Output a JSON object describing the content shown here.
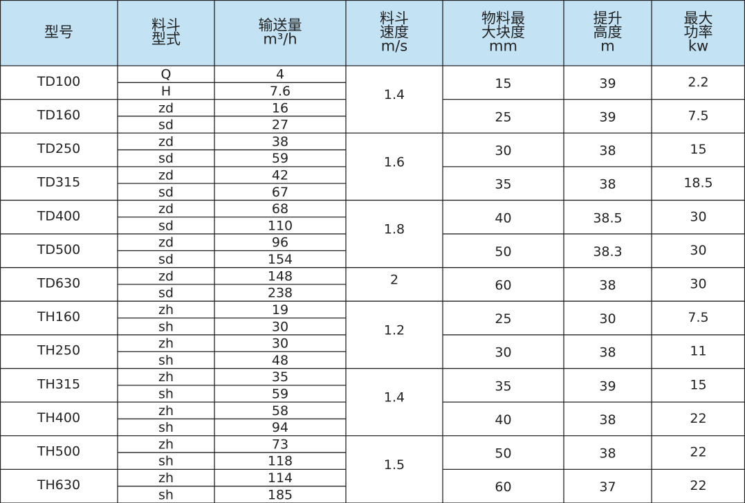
{
  "header": {
    "columns": [
      [
        "型号"
      ],
      [
        "料斗",
        "型式"
      ],
      [
        "输送量",
        "m³/h"
      ],
      [
        "料斗",
        "速度",
        "m/s"
      ],
      [
        "物料最",
        "大块度",
        "mm"
      ],
      [
        "提升",
        "高度",
        "m"
      ],
      [
        "最大",
        "功率",
        "kw"
      ]
    ]
  },
  "rows": [
    {
      "model": "TD100",
      "types": [
        "Q",
        "H"
      ],
      "capacity": [
        4,
        7.6
      ],
      "size": 15,
      "height": 39,
      "power": 2.2
    },
    {
      "model": "TD160",
      "types": [
        "zd",
        "sd"
      ],
      "capacity": [
        16,
        27
      ],
      "size": 25,
      "height": 39,
      "power": 7.5
    },
    {
      "model": "TD250",
      "types": [
        "zd",
        "sd"
      ],
      "capacity": [
        38,
        59
      ],
      "size": 30,
      "height": 38,
      "power": 15
    },
    {
      "model": "TD315",
      "types": [
        "zd",
        "sd"
      ],
      "capacity": [
        42,
        67
      ],
      "size": 35,
      "height": 38,
      "power": 18.5
    },
    {
      "model": "TD400",
      "types": [
        "zd",
        "sd"
      ],
      "capacity": [
        68,
        110
      ],
      "size": 40,
      "height": 38.5,
      "power": 30
    },
    {
      "model": "TD500",
      "types": [
        "zd",
        "sd"
      ],
      "capacity": [
        96,
        154
      ],
      "size": 50,
      "height": 38.3,
      "power": 30
    },
    {
      "model": "TD630",
      "types": [
        "zd",
        "sd"
      ],
      "capacity": [
        148,
        238
      ],
      "size": 60,
      "height": 38,
      "power": 30
    },
    {
      "model": "TH160",
      "types": [
        "zh",
        "sh"
      ],
      "capacity": [
        19,
        30
      ],
      "size": 25,
      "height": 30,
      "power": 7.5
    },
    {
      "model": "TH250",
      "types": [
        "zh",
        "sh"
      ],
      "capacity": [
        30,
        48
      ],
      "size": 30,
      "height": 38,
      "power": 11
    },
    {
      "model": "TH315",
      "types": [
        "zh",
        "sh"
      ],
      "capacity": [
        35,
        59
      ],
      "size": 35,
      "height": 39,
      "power": 15
    },
    {
      "model": "TH400",
      "types": [
        "zh",
        "sh"
      ],
      "capacity": [
        58,
        94
      ],
      "size": 40,
      "height": 38,
      "power": 22
    },
    {
      "model": "TH500",
      "types": [
        "zh",
        "sh"
      ],
      "capacity": [
        73,
        118
      ],
      "size": 50,
      "height": 38,
      "power": 22
    },
    {
      "model": "TH630",
      "types": [
        "zh",
        "sh"
      ],
      "capacity": [
        114,
        185
      ],
      "size": 60,
      "height": 37,
      "power": 22
    }
  ],
  "speeds": [
    1.4,
    1.6,
    1.8,
    2,
    1.2,
    1.4,
    1.5
  ]
}
